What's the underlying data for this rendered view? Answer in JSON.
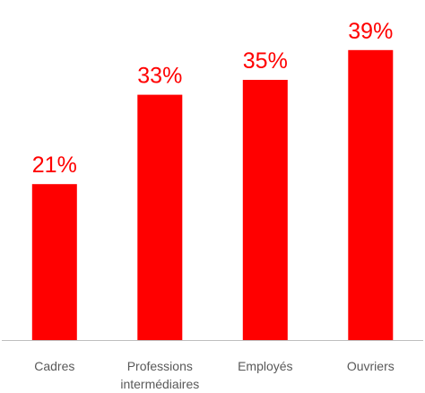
{
  "chart_data": {
    "type": "bar",
    "categories": [
      [
        "Cadres"
      ],
      [
        "Professions",
        "intermédiaires"
      ],
      [
        "Employés"
      ],
      [
        "Ouvriers"
      ]
    ],
    "values": [
      21,
      33,
      35,
      39
    ],
    "value_labels": [
      "21%",
      "33%",
      "35%",
      "39%"
    ],
    "unit": "%",
    "title": "",
    "xlabel": "",
    "ylabel": "",
    "ylim": [
      0,
      40
    ],
    "grid": false,
    "legend": "none",
    "bar_color": "#ff0000",
    "label_color": "#ff0000",
    "axis_color": "#bfbfbf"
  }
}
